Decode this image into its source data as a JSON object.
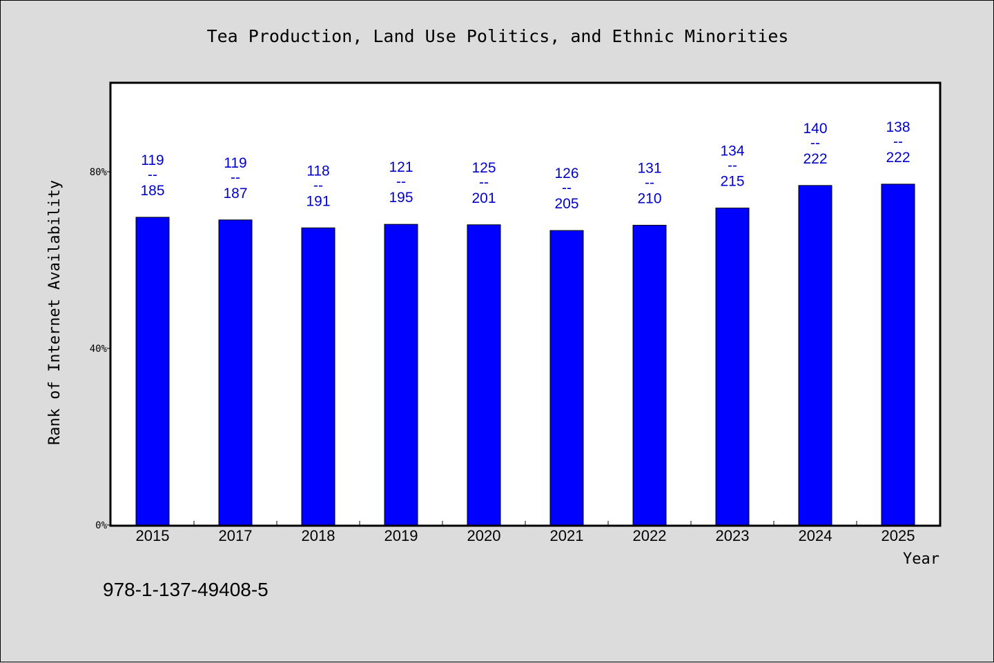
{
  "chart_data": {
    "type": "bar",
    "title": "Tea Production, Land Use Politics, and Ethnic Minorities",
    "xlabel": "Year",
    "ylabel": "Rank of Internet Availability",
    "categories": [
      "2015",
      "2017",
      "2018",
      "2019",
      "2020",
      "2021",
      "2022",
      "2023",
      "2024",
      "2025"
    ],
    "values": [
      69.7,
      69.1,
      67.3,
      68.1,
      68.0,
      66.7,
      67.9,
      71.8,
      76.9,
      77.2
    ],
    "data_labels": [
      {
        "top": "119",
        "sep": "--",
        "bottom": "185"
      },
      {
        "top": "119",
        "sep": "--",
        "bottom": "187"
      },
      {
        "top": "118",
        "sep": "--",
        "bottom": "191"
      },
      {
        "top": "121",
        "sep": "--",
        "bottom": "195"
      },
      {
        "top": "125",
        "sep": "--",
        "bottom": "201"
      },
      {
        "top": "126",
        "sep": "--",
        "bottom": "205"
      },
      {
        "top": "131",
        "sep": "--",
        "bottom": "210"
      },
      {
        "top": "134",
        "sep": "--",
        "bottom": "215"
      },
      {
        "top": "140",
        "sep": "--",
        "bottom": "222"
      },
      {
        "top": "138",
        "sep": "--",
        "bottom": "222"
      }
    ],
    "ylim": [
      0,
      100
    ],
    "yticks": [
      0,
      40,
      80
    ],
    "ytick_labels": [
      "0%",
      "40%",
      "80%"
    ],
    "grid": false,
    "bar_color": "#0000ff",
    "label_color": "#0000cc",
    "plot_background": "#ffffff",
    "page_background": "#dcdcdc"
  },
  "footnote": "978-1-137-49408-5"
}
